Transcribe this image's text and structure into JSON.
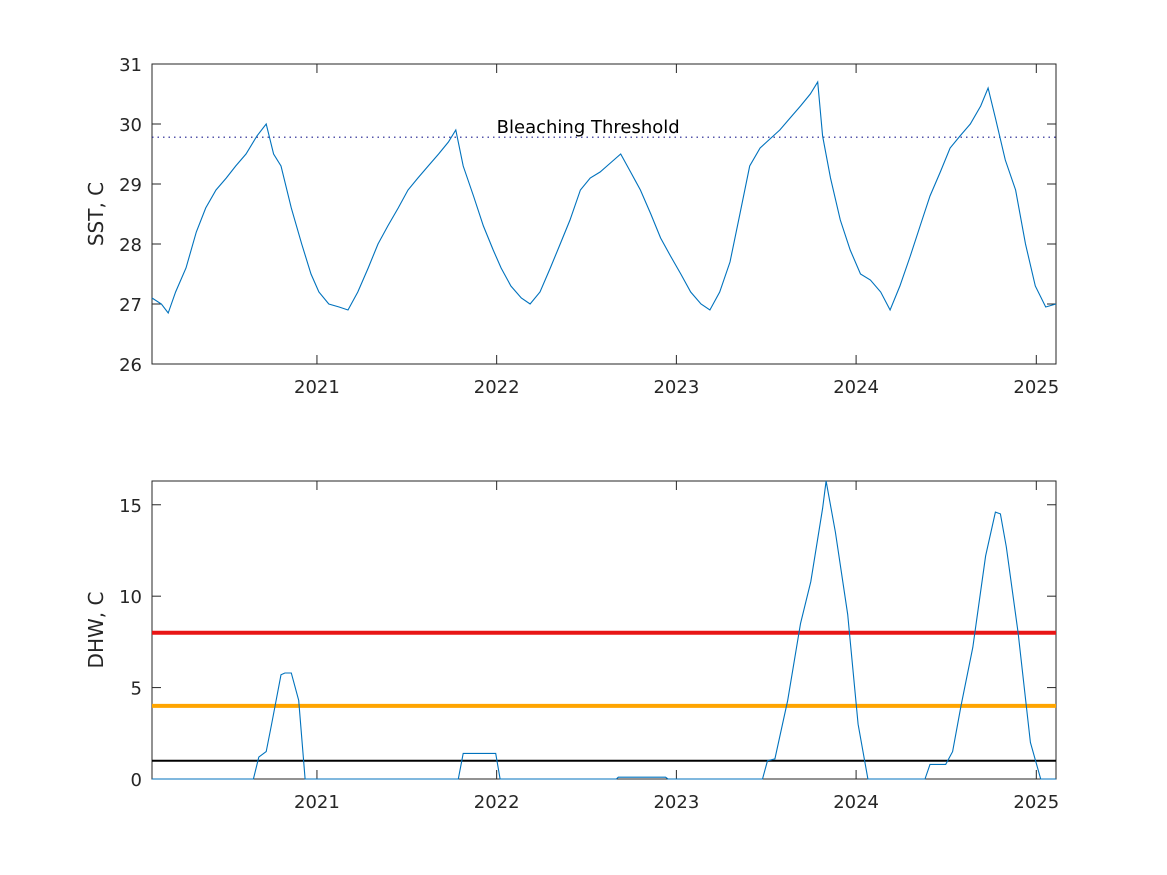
{
  "chart_data": [
    {
      "type": "line",
      "ylabel": "SST, C",
      "xlabel": "",
      "title": "",
      "xlim": [
        "2020-02-01",
        "2025-02-10"
      ],
      "ylim": [
        26,
        31
      ],
      "x_tick_labels": [
        "2021",
        "2022",
        "2023",
        "2024",
        "2025"
      ],
      "y_tick_labels": [
        "26",
        "27",
        "28",
        "29",
        "30",
        "31"
      ],
      "y_ticks": [
        26,
        27,
        28,
        29,
        30,
        31
      ],
      "grid": false,
      "colors": {
        "series": "#0072BD",
        "threshold": "#1f1f8f",
        "axes": "#262626"
      },
      "annotations": [
        {
          "text": "Bleaching Threshold",
          "x": "2022-01-01",
          "y": 29.95
        }
      ],
      "threshold_line": {
        "y": 29.78,
        "style": "dotted"
      },
      "series": [
        {
          "x": [
            "2020-02-01",
            "2020-02-20",
            "2020-03-05",
            "2020-03-20",
            "2020-04-10",
            "2020-05-01",
            "2020-05-20",
            "2020-06-10",
            "2020-07-01",
            "2020-07-20",
            "2020-08-10",
            "2020-09-01",
            "2020-09-20",
            "2020-10-05",
            "2020-10-20",
            "2020-11-10",
            "2020-12-01",
            "2020-12-20",
            "2021-01-05",
            "2021-01-25",
            "2021-02-15",
            "2021-03-05",
            "2021-03-25",
            "2021-04-15",
            "2021-05-05",
            "2021-05-25",
            "2021-06-15",
            "2021-07-05",
            "2021-07-25",
            "2021-08-15",
            "2021-09-05",
            "2021-09-25",
            "2021-10-10",
            "2021-10-25",
            "2021-11-15",
            "2021-12-05",
            "2021-12-25",
            "2022-01-10",
            "2022-01-30",
            "2022-02-20",
            "2022-03-10",
            "2022-03-30",
            "2022-04-20",
            "2022-05-10",
            "2022-05-30",
            "2022-06-20",
            "2022-07-10",
            "2022-07-30",
            "2022-08-20",
            "2022-09-10",
            "2022-09-30",
            "2022-10-20",
            "2022-11-10",
            "2022-11-30",
            "2022-12-20",
            "2023-01-10",
            "2023-01-30",
            "2023-02-20",
            "2023-03-10",
            "2023-03-30",
            "2023-04-20",
            "2023-05-10",
            "2023-05-30",
            "2023-06-20",
            "2023-07-10",
            "2023-07-30",
            "2023-08-20",
            "2023-09-10",
            "2023-09-30",
            "2023-10-15",
            "2023-10-25",
            "2023-11-10",
            "2023-11-30",
            "2023-12-20",
            "2024-01-10",
            "2024-01-30",
            "2024-02-20",
            "2024-03-10",
            "2024-03-30",
            "2024-04-20",
            "2024-05-10",
            "2024-05-30",
            "2024-06-20",
            "2024-07-10",
            "2024-07-30",
            "2024-08-20",
            "2024-09-10",
            "2024-09-25",
            "2024-10-10",
            "2024-10-30",
            "2024-11-20",
            "2024-12-10",
            "2024-12-30",
            "2025-01-20",
            "2025-02-10"
          ],
          "y": [
            27.1,
            27.0,
            26.85,
            27.2,
            27.6,
            28.2,
            28.6,
            28.9,
            29.1,
            29.3,
            29.5,
            29.8,
            30.0,
            29.5,
            29.3,
            28.6,
            28.0,
            27.5,
            27.2,
            27.0,
            26.95,
            26.9,
            27.2,
            27.6,
            28.0,
            28.3,
            28.6,
            28.9,
            29.1,
            29.3,
            29.5,
            29.7,
            29.9,
            29.3,
            28.8,
            28.3,
            27.9,
            27.6,
            27.3,
            27.1,
            27.0,
            27.2,
            27.6,
            28.0,
            28.4,
            28.9,
            29.1,
            29.2,
            29.35,
            29.5,
            29.2,
            28.9,
            28.5,
            28.1,
            27.8,
            27.5,
            27.2,
            27.0,
            26.9,
            27.2,
            27.7,
            28.5,
            29.3,
            29.6,
            29.75,
            29.9,
            30.1,
            30.3,
            30.5,
            30.7,
            29.8,
            29.1,
            28.4,
            27.9,
            27.5,
            27.4,
            27.2,
            26.9,
            27.3,
            27.8,
            28.3,
            28.8,
            29.2,
            29.6,
            29.8,
            30.0,
            30.3,
            30.6,
            30.1,
            29.4,
            28.9,
            28.0,
            27.3,
            26.95,
            27.0
          ]
        }
      ]
    },
    {
      "type": "line",
      "ylabel": "DHW, C",
      "xlabel": "",
      "title": "",
      "xlim": [
        "2020-02-01",
        "2025-02-10"
      ],
      "ylim": [
        0,
        16.3
      ],
      "x_tick_labels": [
        "2021",
        "2022",
        "2023",
        "2024",
        "2025"
      ],
      "y_tick_labels": [
        "0",
        "5",
        "10",
        "15"
      ],
      "y_ticks": [
        0,
        5,
        10,
        15
      ],
      "grid": false,
      "colors": {
        "series": "#0072BD",
        "red_line": "#e81515",
        "orange_line": "#ffa500",
        "black_line": "#000000"
      },
      "reference_lines": [
        {
          "y": 8,
          "color": "#e81515"
        },
        {
          "y": 4,
          "color": "#ffa500"
        },
        {
          "y": 1,
          "color": "#000000"
        }
      ],
      "series": [
        {
          "x": [
            "2020-02-01",
            "2020-08-25",
            "2020-09-05",
            "2020-09-20",
            "2020-10-01",
            "2020-10-20",
            "2020-10-28",
            "2020-11-10",
            "2020-11-25",
            "2020-12-08",
            "2021-06-01",
            "2021-10-15",
            "2021-10-25",
            "2021-12-30",
            "2022-01-08",
            "2022-09-01",
            "2022-09-05",
            "2022-12-10",
            "2022-12-15",
            "2023-06-25",
            "2023-07-05",
            "2023-07-20",
            "2023-08-15",
            "2023-09-10",
            "2023-10-01",
            "2023-10-25",
            "2023-11-01",
            "2023-11-20",
            "2023-12-15",
            "2024-01-05",
            "2024-01-25",
            "2024-05-20",
            "2024-05-30",
            "2024-07-01",
            "2024-07-15",
            "2024-08-01",
            "2024-08-25",
            "2024-09-20",
            "2024-10-10",
            "2024-10-20",
            "2024-11-01",
            "2024-11-25",
            "2024-12-20",
            "2025-01-10",
            "2025-01-25",
            "2025-02-10"
          ],
          "y": [
            0,
            0,
            1.2,
            1.5,
            3.0,
            5.7,
            5.8,
            5.8,
            4.3,
            0,
            0,
            0,
            1.4,
            1.4,
            0,
            0,
            0.1,
            0.1,
            0,
            0,
            1.0,
            1.1,
            4.3,
            8.5,
            10.8,
            14.8,
            16.3,
            13.5,
            9.0,
            3.0,
            0,
            0,
            0.8,
            0.8,
            1.5,
            4.0,
            7.2,
            12.2,
            14.6,
            14.5,
            12.7,
            8.0,
            2.0,
            0,
            0,
            0
          ]
        }
      ]
    }
  ]
}
